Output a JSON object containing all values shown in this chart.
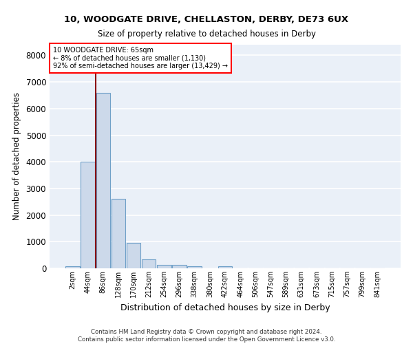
{
  "title1": "10, WOODGATE DRIVE, CHELLASTON, DERBY, DE73 6UX",
  "title2": "Size of property relative to detached houses in Derby",
  "xlabel": "Distribution of detached houses by size in Derby",
  "ylabel": "Number of detached properties",
  "bar_color": "#ccd9ea",
  "bar_edgecolor": "#6fa0c8",
  "bg_color": "#eaf0f8",
  "grid_color": "#ffffff",
  "annotation_line_color": "#8b0000",
  "annotation_text_line1": "10 WOODGATE DRIVE: 65sqm",
  "annotation_text_line2": "← 8% of detached houses are smaller (1,130)",
  "annotation_text_line3": "92% of semi-detached houses are larger (13,429) →",
  "footer_line1": "Contains HM Land Registry data © Crown copyright and database right 2024.",
  "footer_line2": "Contains public sector information licensed under the Open Government Licence v3.0.",
  "bin_labels": [
    "2sqm",
    "44sqm",
    "86sqm",
    "128sqm",
    "170sqm",
    "212sqm",
    "254sqm",
    "296sqm",
    "338sqm",
    "380sqm",
    "422sqm",
    "464sqm",
    "506sqm",
    "547sqm",
    "589sqm",
    "631sqm",
    "673sqm",
    "715sqm",
    "757sqm",
    "799sqm",
    "841sqm"
  ],
  "bar_heights": [
    75,
    4000,
    6580,
    2620,
    960,
    330,
    130,
    120,
    80,
    0,
    80,
    0,
    0,
    0,
    0,
    0,
    0,
    0,
    0,
    0,
    0
  ],
  "ylim": [
    0,
    8400
  ],
  "yticks": [
    0,
    1000,
    2000,
    3000,
    4000,
    5000,
    6000,
    7000,
    8000
  ],
  "vline_x": 1.5,
  "annotation_font_size": 7.0
}
